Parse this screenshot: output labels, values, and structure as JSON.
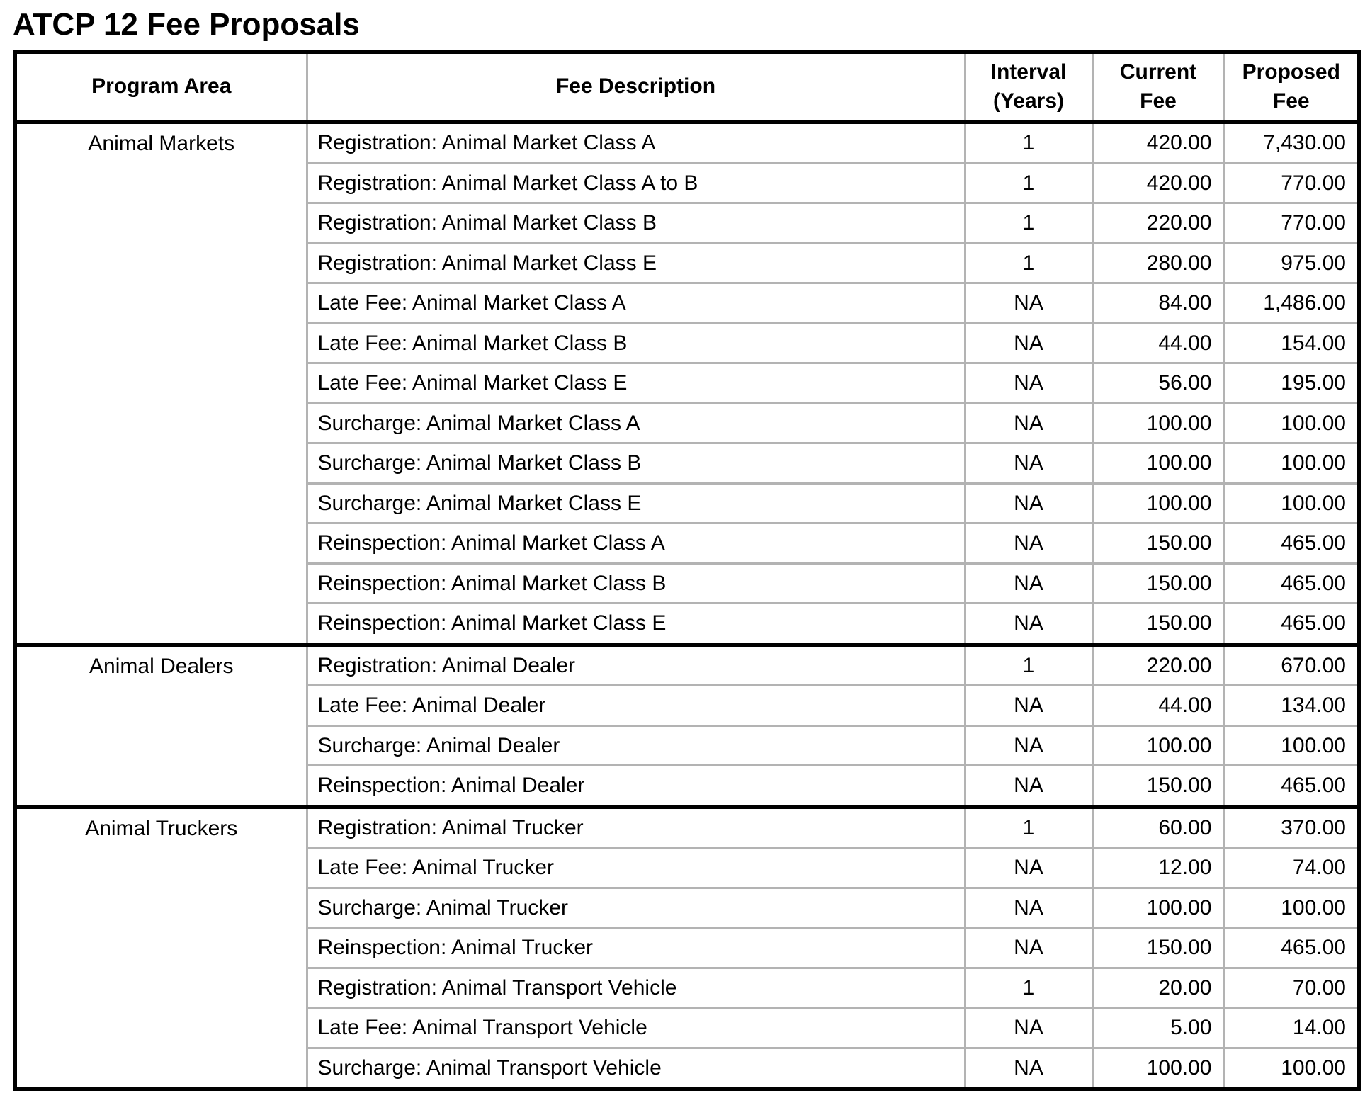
{
  "title": "ATCP 12 Fee Proposals",
  "colors": {
    "text": "#000000",
    "background": "#ffffff",
    "grid_line": "#b3b3b3",
    "heavy_border": "#000000"
  },
  "table": {
    "headers": {
      "program_area": "Program Area",
      "fee_description": "Fee Description",
      "interval": "Interval\n(Years)",
      "current_fee": "Current\nFee",
      "proposed_fee": "Proposed\nFee"
    },
    "sections": [
      {
        "program_area": "Animal Markets",
        "rows": [
          {
            "fee_description": "Registration: Animal Market Class A",
            "interval": "1",
            "current_fee": "420.00",
            "proposed_fee": "7,430.00"
          },
          {
            "fee_description": "Registration: Animal Market Class A to B",
            "interval": "1",
            "current_fee": "420.00",
            "proposed_fee": "770.00"
          },
          {
            "fee_description": "Registration: Animal Market Class B",
            "interval": "1",
            "current_fee": "220.00",
            "proposed_fee": "770.00"
          },
          {
            "fee_description": "Registration: Animal Market Class E",
            "interval": "1",
            "current_fee": "280.00",
            "proposed_fee": "975.00"
          },
          {
            "fee_description": "Late Fee: Animal Market Class A",
            "interval": "NA",
            "current_fee": "84.00",
            "proposed_fee": "1,486.00"
          },
          {
            "fee_description": "Late Fee: Animal Market Class B",
            "interval": "NA",
            "current_fee": "44.00",
            "proposed_fee": "154.00"
          },
          {
            "fee_description": "Late Fee: Animal Market Class E",
            "interval": "NA",
            "current_fee": "56.00",
            "proposed_fee": "195.00"
          },
          {
            "fee_description": "Surcharge: Animal Market Class A",
            "interval": "NA",
            "current_fee": "100.00",
            "proposed_fee": "100.00"
          },
          {
            "fee_description": "Surcharge: Animal Market Class B",
            "interval": "NA",
            "current_fee": "100.00",
            "proposed_fee": "100.00"
          },
          {
            "fee_description": "Surcharge: Animal Market Class E",
            "interval": "NA",
            "current_fee": "100.00",
            "proposed_fee": "100.00"
          },
          {
            "fee_description": "Reinspection: Animal Market Class A",
            "interval": "NA",
            "current_fee": "150.00",
            "proposed_fee": "465.00"
          },
          {
            "fee_description": "Reinspection: Animal Market Class B",
            "interval": "NA",
            "current_fee": "150.00",
            "proposed_fee": "465.00"
          },
          {
            "fee_description": "Reinspection: Animal Market Class E",
            "interval": "NA",
            "current_fee": "150.00",
            "proposed_fee": "465.00"
          }
        ]
      },
      {
        "program_area": "Animal Dealers",
        "rows": [
          {
            "fee_description": "Registration: Animal Dealer",
            "interval": "1",
            "current_fee": "220.00",
            "proposed_fee": "670.00"
          },
          {
            "fee_description": "Late Fee: Animal Dealer",
            "interval": "NA",
            "current_fee": "44.00",
            "proposed_fee": "134.00"
          },
          {
            "fee_description": "Surcharge: Animal Dealer",
            "interval": "NA",
            "current_fee": "100.00",
            "proposed_fee": "100.00"
          },
          {
            "fee_description": "Reinspection: Animal Dealer",
            "interval": "NA",
            "current_fee": "150.00",
            "proposed_fee": "465.00"
          }
        ]
      },
      {
        "program_area": "Animal Truckers",
        "rows": [
          {
            "fee_description": "Registration: Animal Trucker",
            "interval": "1",
            "current_fee": "60.00",
            "proposed_fee": "370.00"
          },
          {
            "fee_description": "Late Fee: Animal Trucker",
            "interval": "NA",
            "current_fee": "12.00",
            "proposed_fee": "74.00"
          },
          {
            "fee_description": "Surcharge: Animal Trucker",
            "interval": "NA",
            "current_fee": "100.00",
            "proposed_fee": "100.00"
          },
          {
            "fee_description": "Reinspection: Animal Trucker",
            "interval": "NA",
            "current_fee": "150.00",
            "proposed_fee": "465.00"
          },
          {
            "fee_description": "Registration: Animal Transport Vehicle",
            "interval": "1",
            "current_fee": "20.00",
            "proposed_fee": "70.00"
          },
          {
            "fee_description": "Late Fee: Animal Transport Vehicle",
            "interval": "NA",
            "current_fee": "5.00",
            "proposed_fee": "14.00"
          },
          {
            "fee_description": "Surcharge: Animal Transport Vehicle",
            "interval": "NA",
            "current_fee": "100.00",
            "proposed_fee": "100.00"
          }
        ]
      }
    ]
  }
}
